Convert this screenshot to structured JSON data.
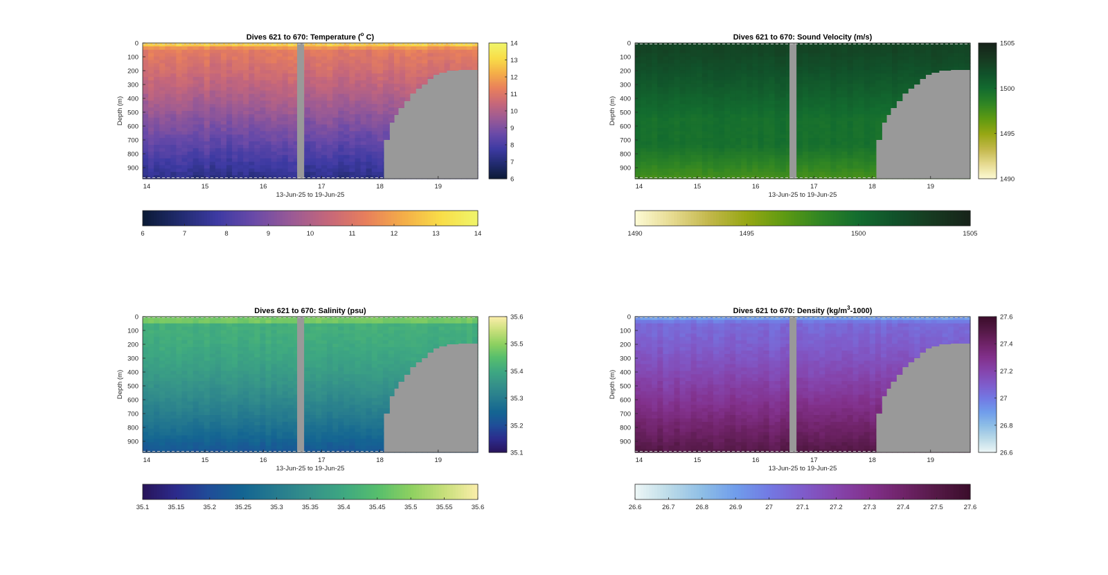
{
  "chart_data": [
    {
      "type": "heatmap",
      "variable": "temperature",
      "title": "Dives 621 to 670: Temperature (° C)",
      "title_parts": [
        "Dives 621 to 670: Temperature (",
        "o",
        " C)"
      ],
      "xlabel": "13-Jun-25 to 19-Jun-25",
      "ylabel": "Depth (m)",
      "x_ticks": [
        "14",
        "15",
        "16",
        "17",
        "18",
        "19"
      ],
      "xlim": [
        13.93,
        19.68
      ],
      "y_ticks": [
        0,
        100,
        200,
        300,
        400,
        500,
        600,
        700,
        800,
        900
      ],
      "ylim": [
        0,
        980
      ],
      "y_reversed": true,
      "data_gap_days": [
        16.58,
        16.7
      ],
      "seafloor_profile": [
        [
          18.07,
          700
        ],
        [
          18.17,
          575
        ],
        [
          18.25,
          520
        ],
        [
          18.32,
          470
        ],
        [
          18.42,
          420
        ],
        [
          18.52,
          365
        ],
        [
          18.62,
          330
        ],
        [
          18.72,
          300
        ],
        [
          18.82,
          260
        ],
        [
          18.92,
          230
        ],
        [
          19.02,
          215
        ],
        [
          19.15,
          200
        ],
        [
          19.35,
          195
        ],
        [
          19.68,
          195
        ]
      ],
      "surface_value": 13.3,
      "deep_value": 7.3,
      "colorbar_ticks": [
        "6",
        "7",
        "8",
        "9",
        "10",
        "11",
        "12",
        "13",
        "14"
      ],
      "clim": [
        6,
        14
      ],
      "colors": [
        "#0b1a35",
        "#212b6e",
        "#3d3aa3",
        "#6a4aa8",
        "#9a5a95",
        "#c6677a",
        "#e87f5c",
        "#f4ad48",
        "#f8dd48",
        "#f0f56a"
      ]
    },
    {
      "type": "heatmap",
      "variable": "sound_velocity",
      "title": "Dives 621 to 670: Sound Velocity (m/s)",
      "title_parts": [
        "Dives 621 to 670: Sound Velocity (m/s)"
      ],
      "xlabel": "13-Jun-25 to 19-Jun-25",
      "ylabel": "Depth (m)",
      "x_ticks": [
        "14",
        "15",
        "16",
        "17",
        "18",
        "19"
      ],
      "xlim": [
        13.93,
        19.68
      ],
      "y_ticks": [
        0,
        100,
        200,
        300,
        400,
        500,
        600,
        700,
        800,
        900
      ],
      "ylim": [
        0,
        980
      ],
      "y_reversed": true,
      "data_gap_days": [
        16.58,
        16.7
      ],
      "seafloor_profile": [
        [
          18.07,
          700
        ],
        [
          18.17,
          575
        ],
        [
          18.25,
          520
        ],
        [
          18.32,
          470
        ],
        [
          18.42,
          420
        ],
        [
          18.52,
          365
        ],
        [
          18.62,
          330
        ],
        [
          18.72,
          300
        ],
        [
          18.82,
          260
        ],
        [
          18.92,
          230
        ],
        [
          19.02,
          215
        ],
        [
          19.15,
          200
        ],
        [
          19.35,
          195
        ],
        [
          19.68,
          195
        ]
      ],
      "surface_value": 1502.5,
      "deep_value": 1497.5,
      "colorbar_ticks": [
        "1490",
        "1495",
        "1500",
        "1505"
      ],
      "clim": [
        1490,
        1505
      ],
      "colors": [
        "#fdfbd5",
        "#e6da90",
        "#c2b74a",
        "#96a713",
        "#5e9a12",
        "#2f8524",
        "#136c2f",
        "#11512a",
        "#173920",
        "#17231a"
      ]
    },
    {
      "type": "heatmap",
      "variable": "salinity",
      "title": "Dives 621 to 670: Salinity (psu)",
      "title_parts": [
        "Dives 621 to 670: Salinity (psu)"
      ],
      "xlabel": "13-Jun-25 to 19-Jun-25",
      "ylabel": "Depth (m)",
      "x_ticks": [
        "14",
        "15",
        "16",
        "17",
        "18",
        "19"
      ],
      "xlim": [
        13.93,
        19.68
      ],
      "y_ticks": [
        0,
        100,
        200,
        300,
        400,
        500,
        600,
        700,
        800,
        900
      ],
      "ylim": [
        0,
        980
      ],
      "y_reversed": true,
      "data_gap_days": [
        16.58,
        16.7
      ],
      "seafloor_profile": [
        [
          18.07,
          700
        ],
        [
          18.17,
          575
        ],
        [
          18.25,
          520
        ],
        [
          18.32,
          470
        ],
        [
          18.42,
          420
        ],
        [
          18.52,
          365
        ],
        [
          18.62,
          330
        ],
        [
          18.72,
          300
        ],
        [
          18.82,
          260
        ],
        [
          18.92,
          230
        ],
        [
          19.02,
          215
        ],
        [
          19.15,
          200
        ],
        [
          19.35,
          195
        ],
        [
          19.68,
          195
        ]
      ],
      "surface_value": 35.48,
      "deep_value": 35.22,
      "colorbar_ticks": [
        "35.1",
        "35.15",
        "35.2",
        "35.25",
        "35.3",
        "35.35",
        "35.4",
        "35.45",
        "35.5",
        "35.55",
        "35.6"
      ],
      "clim": [
        35.1,
        35.6
      ],
      "colors": [
        "#28145a",
        "#2c2b8c",
        "#1f4d98",
        "#146592",
        "#267b8e",
        "#35918a",
        "#3ea881",
        "#56be6d",
        "#8dd060",
        "#c7df7a",
        "#fbeeaa"
      ]
    },
    {
      "type": "heatmap",
      "variable": "density",
      "title": "Dives 621 to 670: Density (kg/m³-1000)",
      "title_parts": [
        "Dives 621 to 670: Density (kg/m",
        "3",
        "-1000)"
      ],
      "xlabel": "13-Jun-25 to 19-Jun-25",
      "ylabel": "Depth (m)",
      "x_ticks": [
        "14",
        "15",
        "16",
        "17",
        "18",
        "19"
      ],
      "xlim": [
        13.93,
        19.68
      ],
      "y_ticks": [
        0,
        100,
        200,
        300,
        400,
        500,
        600,
        700,
        800,
        900
      ],
      "ylim": [
        0,
        980
      ],
      "y_reversed": true,
      "data_gap_days": [
        16.58,
        16.7
      ],
      "seafloor_profile": [
        [
          18.07,
          700
        ],
        [
          18.17,
          575
        ],
        [
          18.25,
          520
        ],
        [
          18.32,
          470
        ],
        [
          18.42,
          420
        ],
        [
          18.52,
          365
        ],
        [
          18.62,
          330
        ],
        [
          18.72,
          300
        ],
        [
          18.82,
          260
        ],
        [
          18.92,
          230
        ],
        [
          19.02,
          215
        ],
        [
          19.15,
          200
        ],
        [
          19.35,
          195
        ],
        [
          19.68,
          195
        ]
      ],
      "surface_value": 26.85,
      "deep_value": 27.5,
      "colorbar_ticks": [
        "26.6",
        "26.7",
        "26.8",
        "26.9",
        "27",
        "27.1",
        "27.2",
        "27.3",
        "27.4",
        "27.5",
        "27.6"
      ],
      "clim": [
        26.6,
        27.6
      ],
      "colors": [
        "#eef7f7",
        "#bcdbe8",
        "#8ebee6",
        "#709deb",
        "#7279e3",
        "#7f5ccb",
        "#8545ad",
        "#82318c",
        "#6f2368",
        "#541946",
        "#3b0d2b"
      ]
    }
  ],
  "colors": {
    "seafloor": "#999999",
    "axis": "#262626",
    "background": "#ffffff"
  }
}
